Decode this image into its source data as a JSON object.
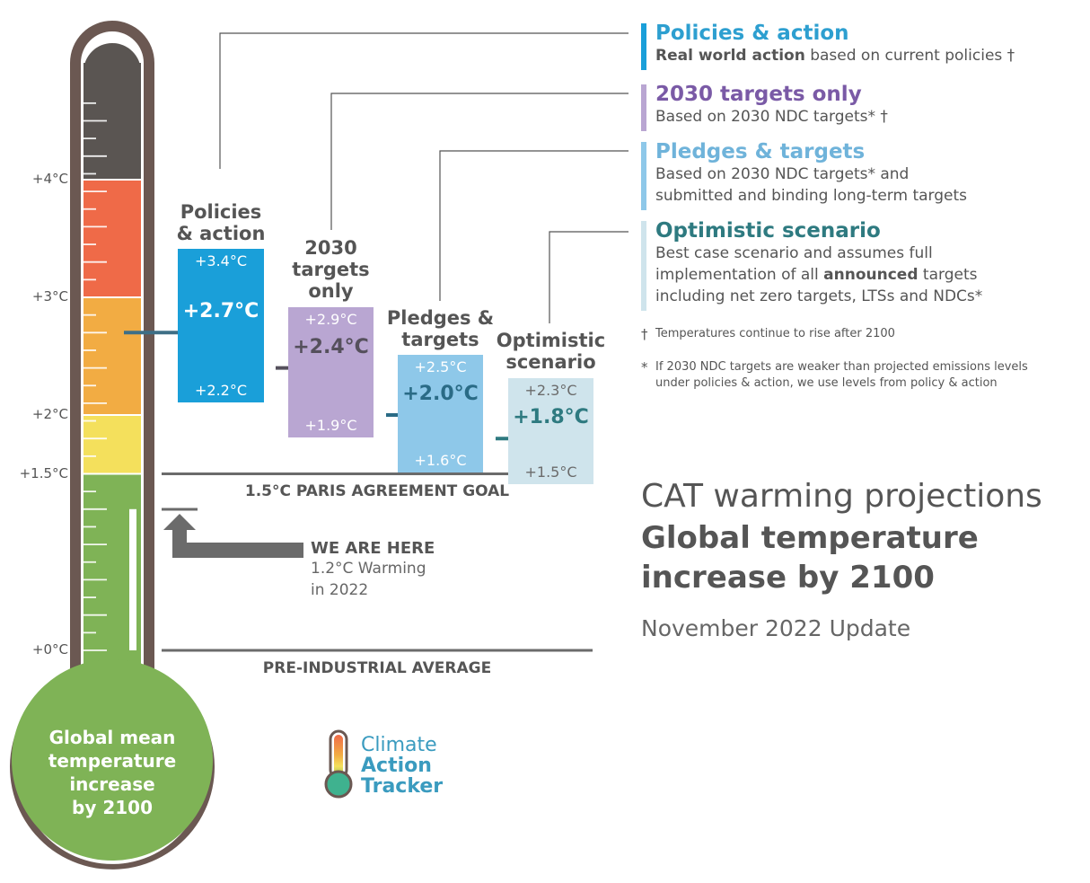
{
  "title": {
    "line1": "CAT warming projections",
    "line2": "Global temperature",
    "line3": "increase by 2100",
    "update": "November 2022 Update"
  },
  "thermometer": {
    "bulb_text": [
      "Global mean",
      "temperature",
      "increase",
      "by 2100"
    ],
    "axis_ticks": [
      "+4°C",
      "+3°C",
      "+2°C",
      "+1.5°C",
      "+0°C"
    ],
    "colors": {
      "outline": "#6b5852",
      "band_4plus": "#5a5552",
      "band_3_4": "#ef6a48",
      "band_2_3": "#f2ac43",
      "band_15_2": "#f4e05c",
      "band_0_15": "#7fb356"
    }
  },
  "chart_data": {
    "type": "bar",
    "unit": "°C",
    "categories": [
      "Policies & action",
      "2030 targets only",
      "Pledges & targets",
      "Optimistic scenario"
    ],
    "series": [
      {
        "name": "Policies & action",
        "low": 2.2,
        "central": 2.7,
        "high": 3.4,
        "low_label": "+2.2°C",
        "central_label": "+2.7°C",
        "high_label": "+3.4°C",
        "color": "#1a9fd9",
        "line_color": "#3e6f86",
        "text_color": "#ffffff",
        "label_lines": [
          "Policies",
          "& action"
        ]
      },
      {
        "name": "2030 targets only",
        "low": 1.9,
        "central": 2.4,
        "high": 2.9,
        "low_label": "+1.9°C",
        "central_label": "+2.4°C",
        "high_label": "+2.9°C",
        "color": "#b9a6d2",
        "line_color": "#55505c",
        "text_color": "#ffffff",
        "central_text_color": "#55505c",
        "label_lines": [
          "2030",
          "targets",
          "only"
        ]
      },
      {
        "name": "Pledges & targets",
        "low": 1.6,
        "central": 2.0,
        "high": 2.5,
        "low_label": "+1.6°C",
        "central_label": "+2.0°C",
        "high_label": "+2.5°C",
        "color": "#8ec8e9",
        "line_color": "#2a6b86",
        "text_color": "#ffffff",
        "central_text_color": "#2a6b86",
        "label_lines": [
          "Pledges &",
          "targets"
        ]
      },
      {
        "name": "Optimistic scenario",
        "low": 1.5,
        "central": 1.8,
        "high": 2.3,
        "low_label": "+1.5°C",
        "central_label": "+1.8°C",
        "high_label": "+2.3°C",
        "color": "#cfe4ec",
        "line_color": "#2e7a80",
        "text_color": "#6b6b6b",
        "central_text_color": "#2e7a80",
        "label_lines": [
          "Optimistic",
          "scenario"
        ]
      }
    ],
    "reference_lines": [
      {
        "value": 1.5,
        "label": "1.5°C PARIS AGREEMENT GOAL"
      },
      {
        "value": 0,
        "label": "PRE-INDUSTRIAL AVERAGE"
      }
    ],
    "current": {
      "value": 1.2,
      "title": "WE ARE HERE",
      "desc_lines": [
        "1.2°C Warming",
        "in 2022"
      ]
    },
    "ylim": [
      0,
      4.6
    ]
  },
  "legend": [
    {
      "title": "Policies & action",
      "color": "#1a9fd9",
      "title_color": "#2d9fd0",
      "desc": [
        {
          "bold": "Real world action",
          "rest": " based on current policies †"
        }
      ]
    },
    {
      "title": "2030 targets only",
      "color": "#b9a6d2",
      "title_color": "#7a5aa6",
      "desc": [
        {
          "bold": "",
          "rest": "Based on 2030 NDC targets* †"
        }
      ]
    },
    {
      "title": "Pledges & targets",
      "color": "#8ec8e9",
      "title_color": "#6fb3da",
      "desc": [
        {
          "bold": "",
          "rest": "Based on 2030 NDC targets* and"
        },
        {
          "bold": "",
          "rest": "submitted and binding long-term targets"
        }
      ]
    },
    {
      "title": "Optimistic scenario",
      "color": "#cfe4ec",
      "title_color": "#2e7a80",
      "desc": [
        {
          "bold": "",
          "rest": "Best case scenario and assumes full"
        },
        {
          "pre": "implementation of all ",
          "bold": "announced",
          "rest": " targets"
        },
        {
          "bold": "",
          "rest": "including net zero targets, LTSs and NDCs*"
        }
      ]
    }
  ],
  "notes": [
    {
      "mark": "†",
      "lines": [
        "Temperatures continue to rise after 2100"
      ]
    },
    {
      "mark": "*",
      "lines": [
        "If 2030 NDC targets are weaker than projected emissions levels",
        "under policies & action, we use levels from policy & action"
      ]
    }
  ],
  "logo": {
    "lines": [
      "Climate",
      "Action",
      "Tracker"
    ]
  }
}
